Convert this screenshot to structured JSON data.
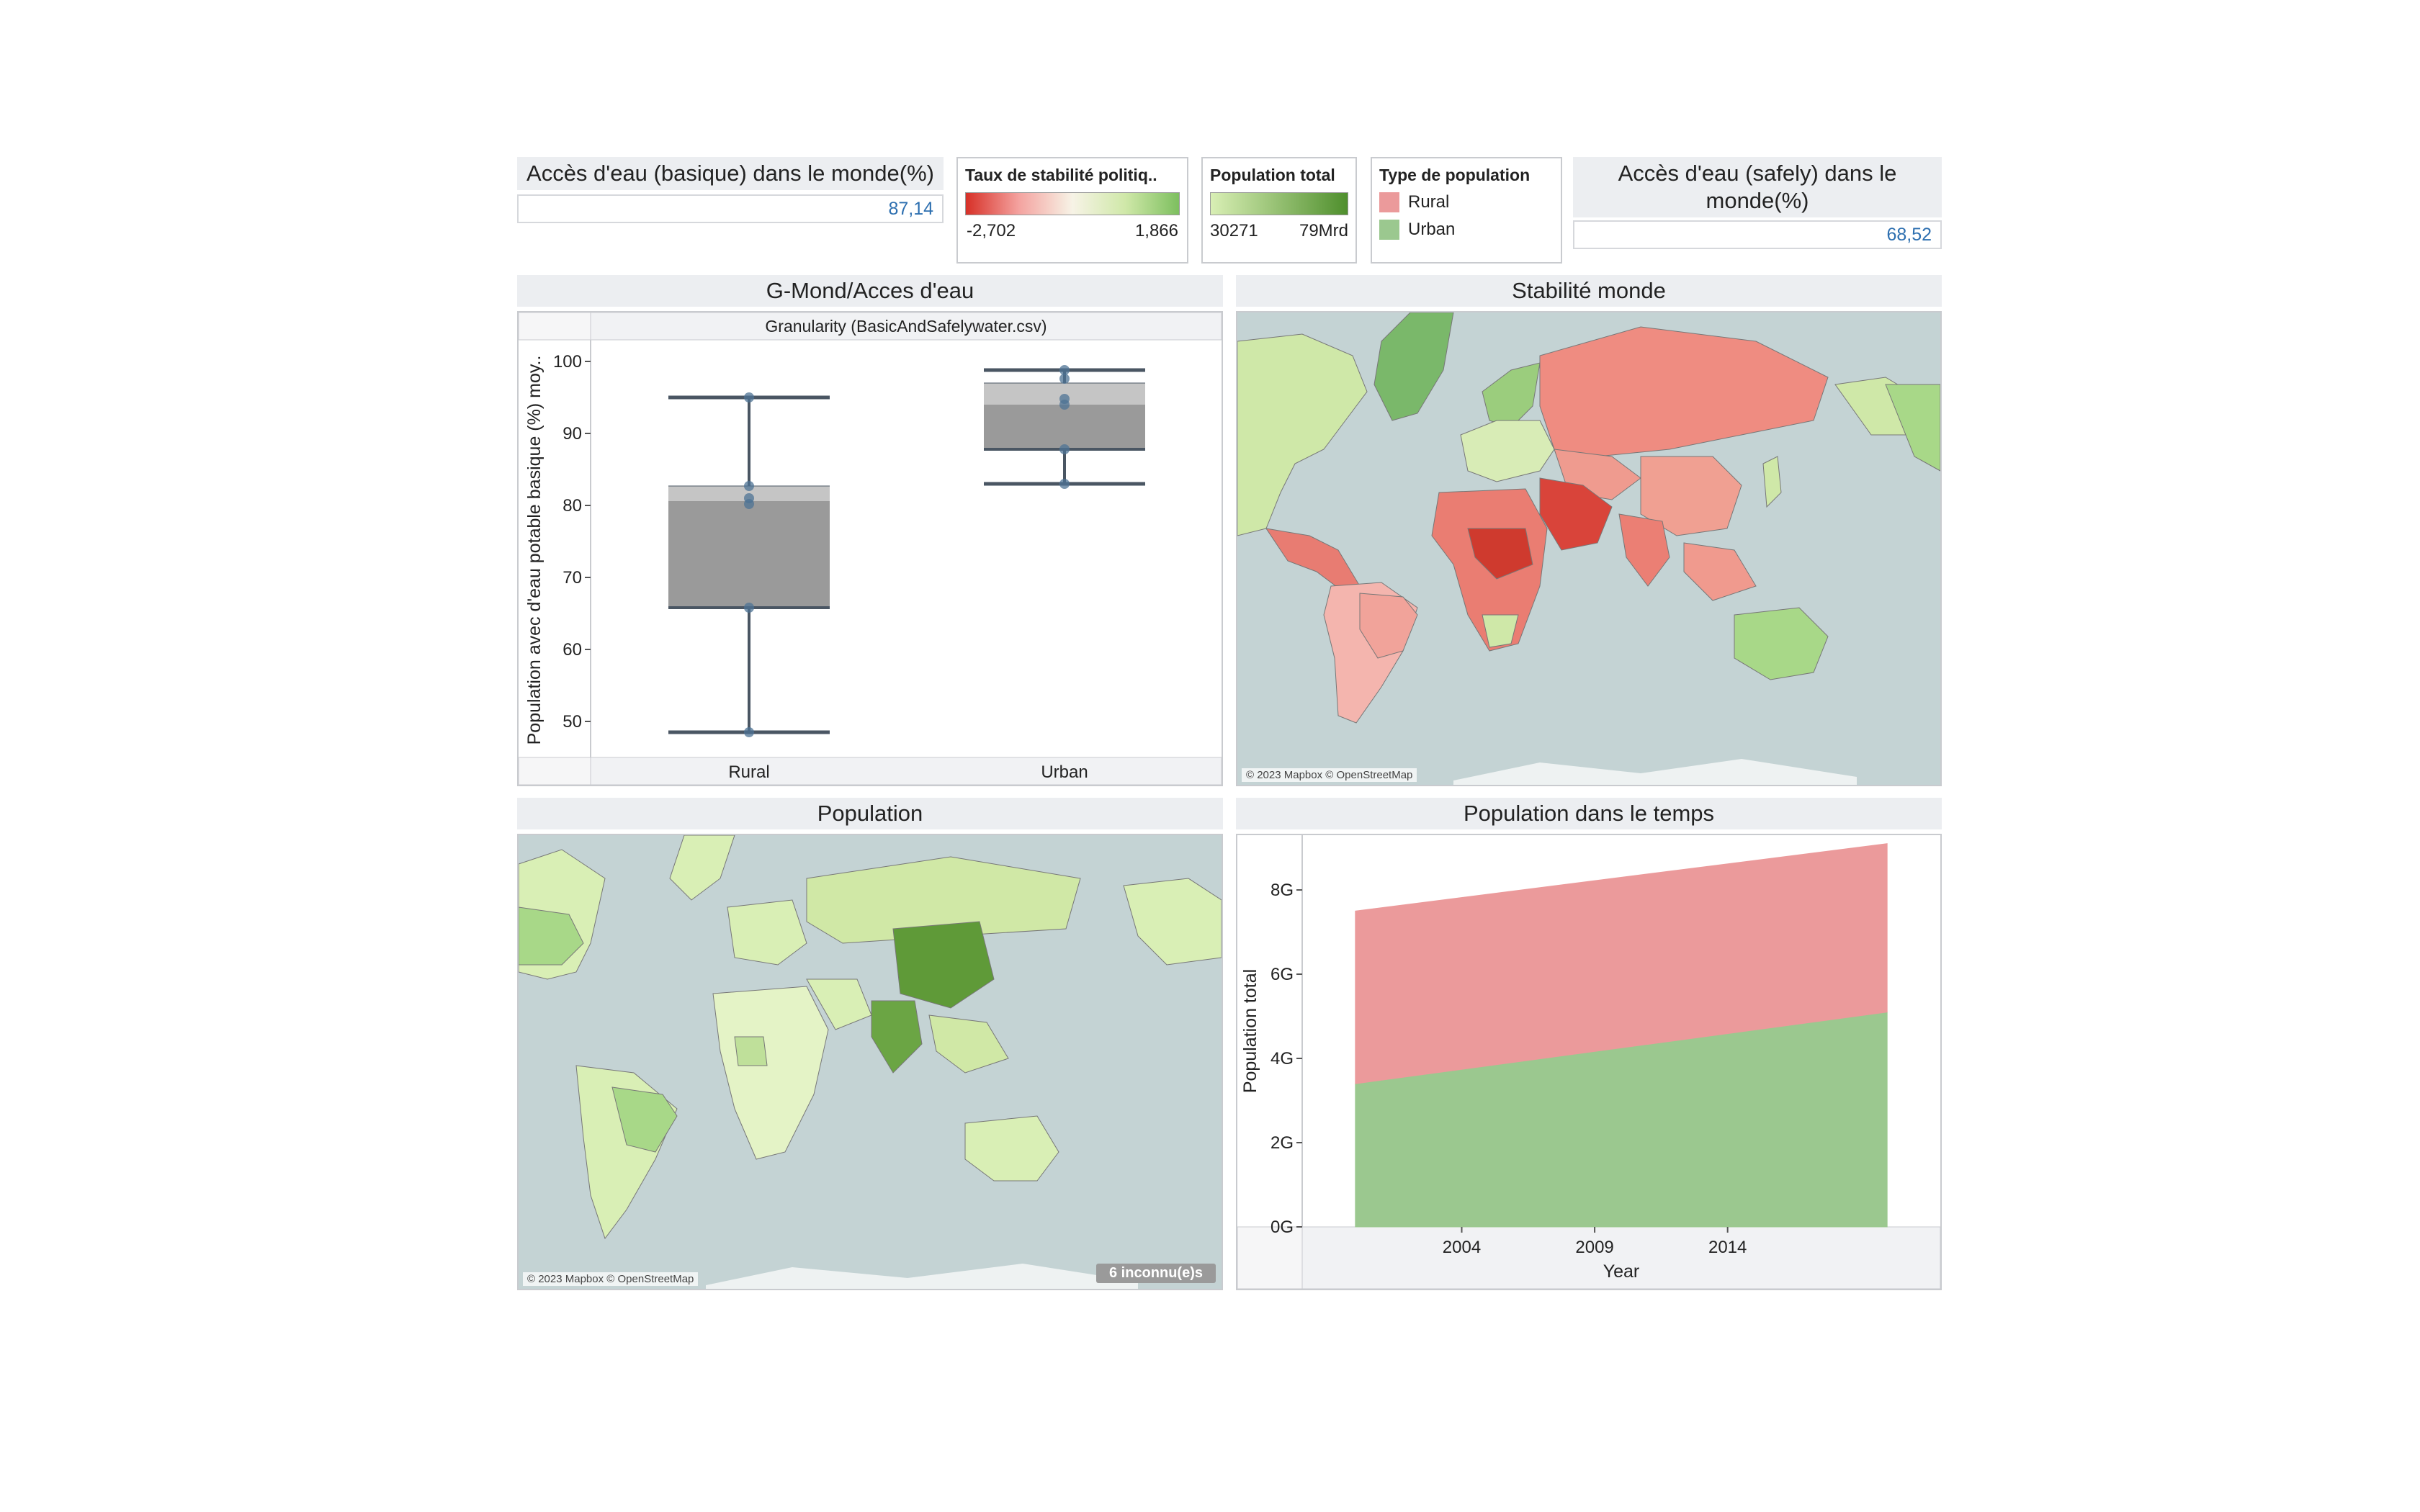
{
  "kpis": {
    "basic": {
      "title": "Accès d'eau (basique) dans le monde(%)",
      "value": "87,14"
    },
    "safely": {
      "title": "Accès d'eau (safely) dans le monde(%)",
      "value": "68,52"
    }
  },
  "legends": {
    "stability": {
      "title": "Taux de stabilité politiq..",
      "min": "-2,702",
      "max": "1,866",
      "colors": [
        "#d73027",
        "#f4a3a0",
        "#f7f3e6",
        "#cfe8a8",
        "#7dbf5f"
      ]
    },
    "population": {
      "title": "Population total",
      "min": "30271",
      "max": "79Mrd",
      "colors": [
        "#d9efb5",
        "#4f8f2d"
      ]
    },
    "type": {
      "title": "Type de population",
      "items": [
        {
          "label": "Rural",
          "color": "#eb9a9b"
        },
        {
          "label": "Urban",
          "color": "#9bc88f"
        }
      ]
    }
  },
  "panels": {
    "boxplot": {
      "title": "G-Mond/Acces d'eau"
    },
    "stability_map": {
      "title": "Stabilité monde",
      "attribution": "© 2023 Mapbox © OpenStreetMap"
    },
    "population_map": {
      "title": "Population",
      "attribution": "© 2023 Mapbox © OpenStreetMap",
      "unknown_badge": "6 inconnu(e)s"
    },
    "area": {
      "title": "Population dans le temps"
    }
  },
  "chart_data": [
    {
      "type": "box",
      "header": "Granularity (BasicAndSafelywater.csv)",
      "ylabel": "Population avec d'eau potable basique (%) moy..",
      "ylim": [
        45,
        103
      ],
      "yticks": [
        50,
        60,
        70,
        80,
        90,
        100
      ],
      "categories": [
        "Rural",
        "Urban"
      ],
      "boxes": [
        {
          "name": "Rural",
          "whisker_low": 48.5,
          "q1": 65.8,
          "median": 80.6,
          "q3": 82.7,
          "whisker_high": 95.0,
          "points": [
            48.5,
            65.8,
            80.2,
            81.0,
            82.7,
            95.0
          ]
        },
        {
          "name": "Urban",
          "whisker_low": 83.0,
          "q1": 87.8,
          "median": 94.0,
          "q3": 97.0,
          "whisker_high": 98.8,
          "points": [
            83.0,
            87.8,
            94.0,
            94.8,
            97.6,
            98.8
          ]
        }
      ]
    },
    {
      "type": "area",
      "stacked": true,
      "xlabel": "Year",
      "ylabel": "Population total",
      "xlim": [
        1998,
        2022
      ],
      "ylim": [
        0,
        9.3
      ],
      "xticks": [
        2004,
        2009,
        2014
      ],
      "yticks": [
        0,
        2,
        4,
        6,
        8
      ],
      "ytick_labels": [
        "0G",
        "2G",
        "4G",
        "6G",
        "8G"
      ],
      "x": [
        2000,
        2020
      ],
      "series": [
        {
          "name": "Urban",
          "color": "#9bc88f",
          "values": [
            3.4,
            5.1
          ]
        },
        {
          "name": "Rural",
          "color": "#eb9a9b",
          "values": [
            4.1,
            4.0
          ]
        }
      ]
    }
  ]
}
